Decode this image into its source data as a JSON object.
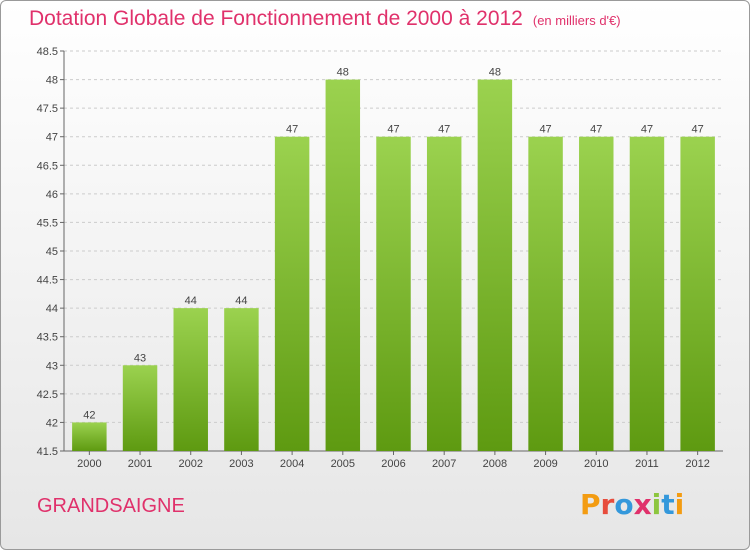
{
  "header": {
    "title": "Dotation Globale de Fonctionnement de 2000 à 2012",
    "subtitle": "(en milliers d'€)"
  },
  "footer": {
    "commune": "GRANDSAIGNE",
    "logo_text": "Proxiti",
    "logo_letter_colors": [
      "#f39c12",
      "#e74c3c",
      "#3498db",
      "#e0316b",
      "#8dc63f",
      "#3498db",
      "#f39c12"
    ]
  },
  "colors": {
    "title": "#e0316b",
    "bar_light": "#9bd24f",
    "bar_dark": "#5e9a11",
    "grid": "#cccccc"
  },
  "chart_data": {
    "type": "bar",
    "title": "Dotation Globale de Fonctionnement de 2000 à 2012",
    "subtitle": "(en milliers d'€)",
    "xlabel": "",
    "ylabel": "",
    "categories": [
      "2000",
      "2001",
      "2002",
      "2003",
      "2004",
      "2005",
      "2006",
      "2007",
      "2008",
      "2009",
      "2010",
      "2011",
      "2012"
    ],
    "values": [
      42,
      43,
      44,
      44,
      47,
      48,
      47,
      47,
      48,
      47,
      47,
      47,
      47
    ],
    "ylim": [
      41.5,
      48.5
    ],
    "yticks": [
      41.5,
      42,
      42.5,
      43,
      43.5,
      44,
      44.5,
      45,
      45.5,
      46,
      46.5,
      47,
      47.5,
      48,
      48.5
    ],
    "grid": true,
    "data_labels": true
  }
}
